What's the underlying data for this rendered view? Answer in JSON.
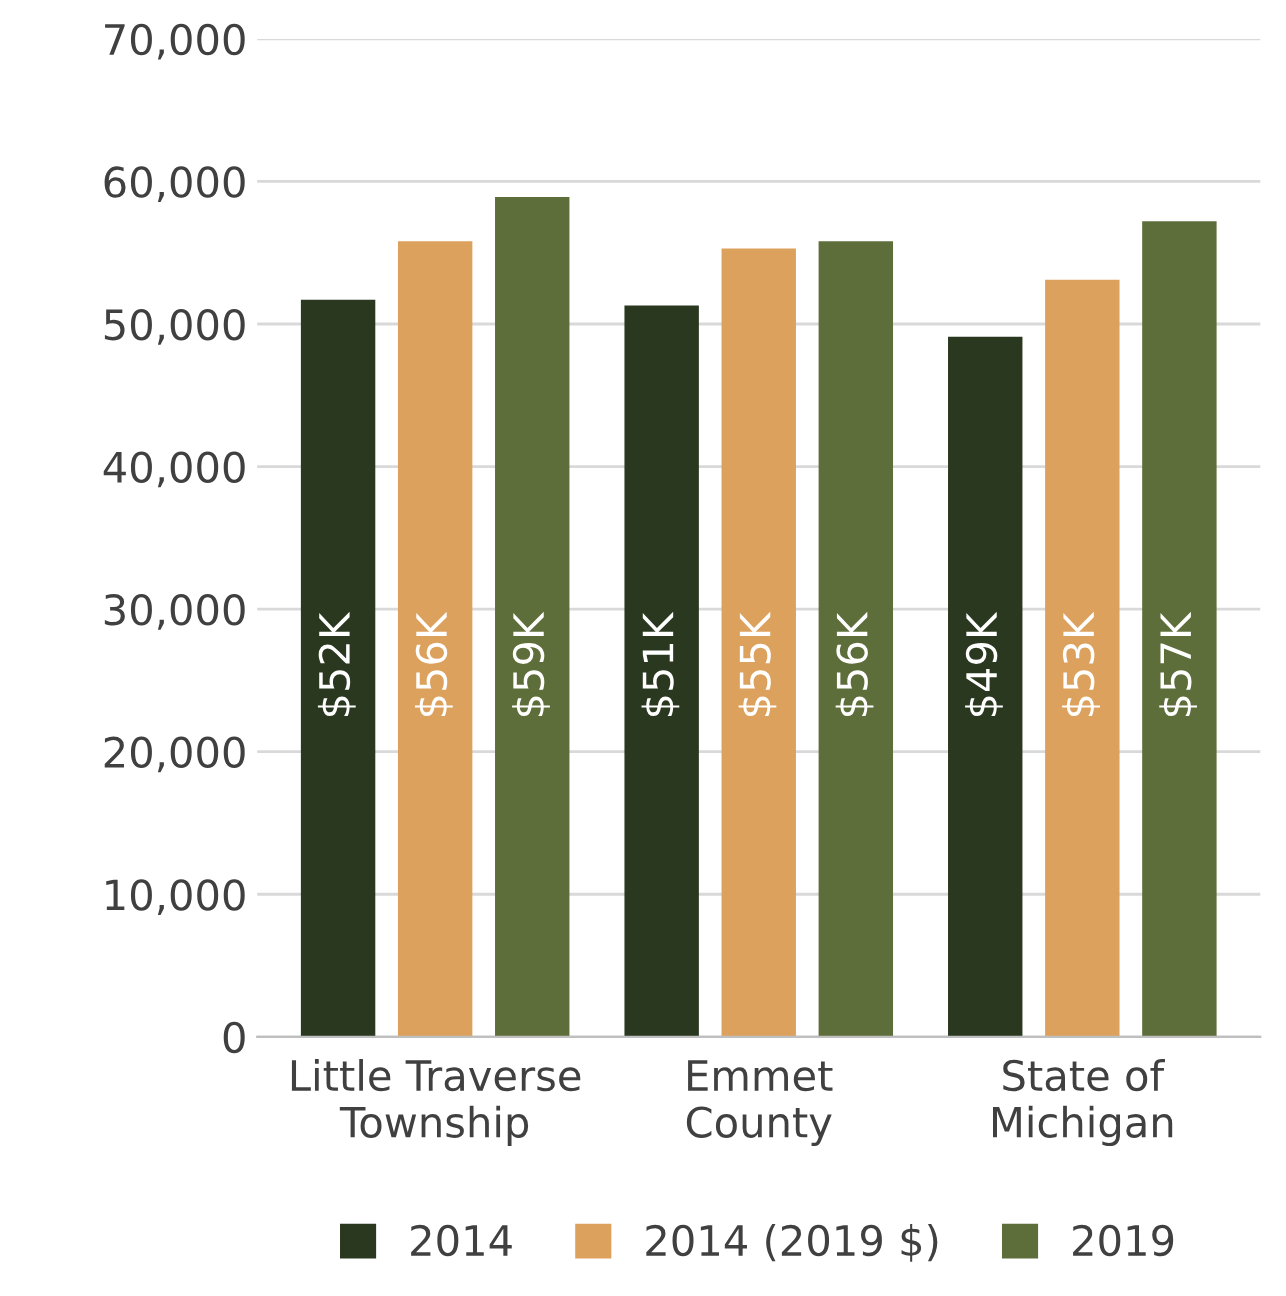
{
  "chart_data": {
    "type": "bar",
    "categories": [
      "Little Traverse\nTownship",
      "Emmet\nCounty",
      "State of\nMichigan"
    ],
    "series": [
      {
        "name": "2014",
        "color": "#2a3820",
        "values": [
          51700,
          51300,
          49100
        ],
        "value_labels": [
          "$52K",
          "$51K",
          "$49K"
        ]
      },
      {
        "name": "2014 (2019 $)",
        "color": "#dda15e",
        "values": [
          55800,
          55300,
          53100
        ],
        "value_labels": [
          "$56K",
          "$55K",
          "$53K"
        ]
      },
      {
        "name": "2019",
        "color": "#5e6e3a",
        "values": [
          58900,
          55800,
          57200
        ],
        "value_labels": [
          "$59K",
          "$56K",
          "$57K"
        ]
      }
    ],
    "ylim": [
      0,
      70000
    ],
    "yticks": [
      0,
      {
        "value": 10000,
        "label": "10,000"
      },
      {
        "value": 20000,
        "label": "20,000"
      },
      {
        "value": 30000,
        "label": "30,000"
      },
      {
        "value": 40000,
        "label": "40,000"
      },
      {
        "value": 50000,
        "label": "50,000"
      },
      {
        "value": 60000,
        "label": "60,000"
      },
      {
        "value": 70000,
        "label": "70,000"
      }
    ],
    "grid": "y",
    "legend": "bottom"
  }
}
